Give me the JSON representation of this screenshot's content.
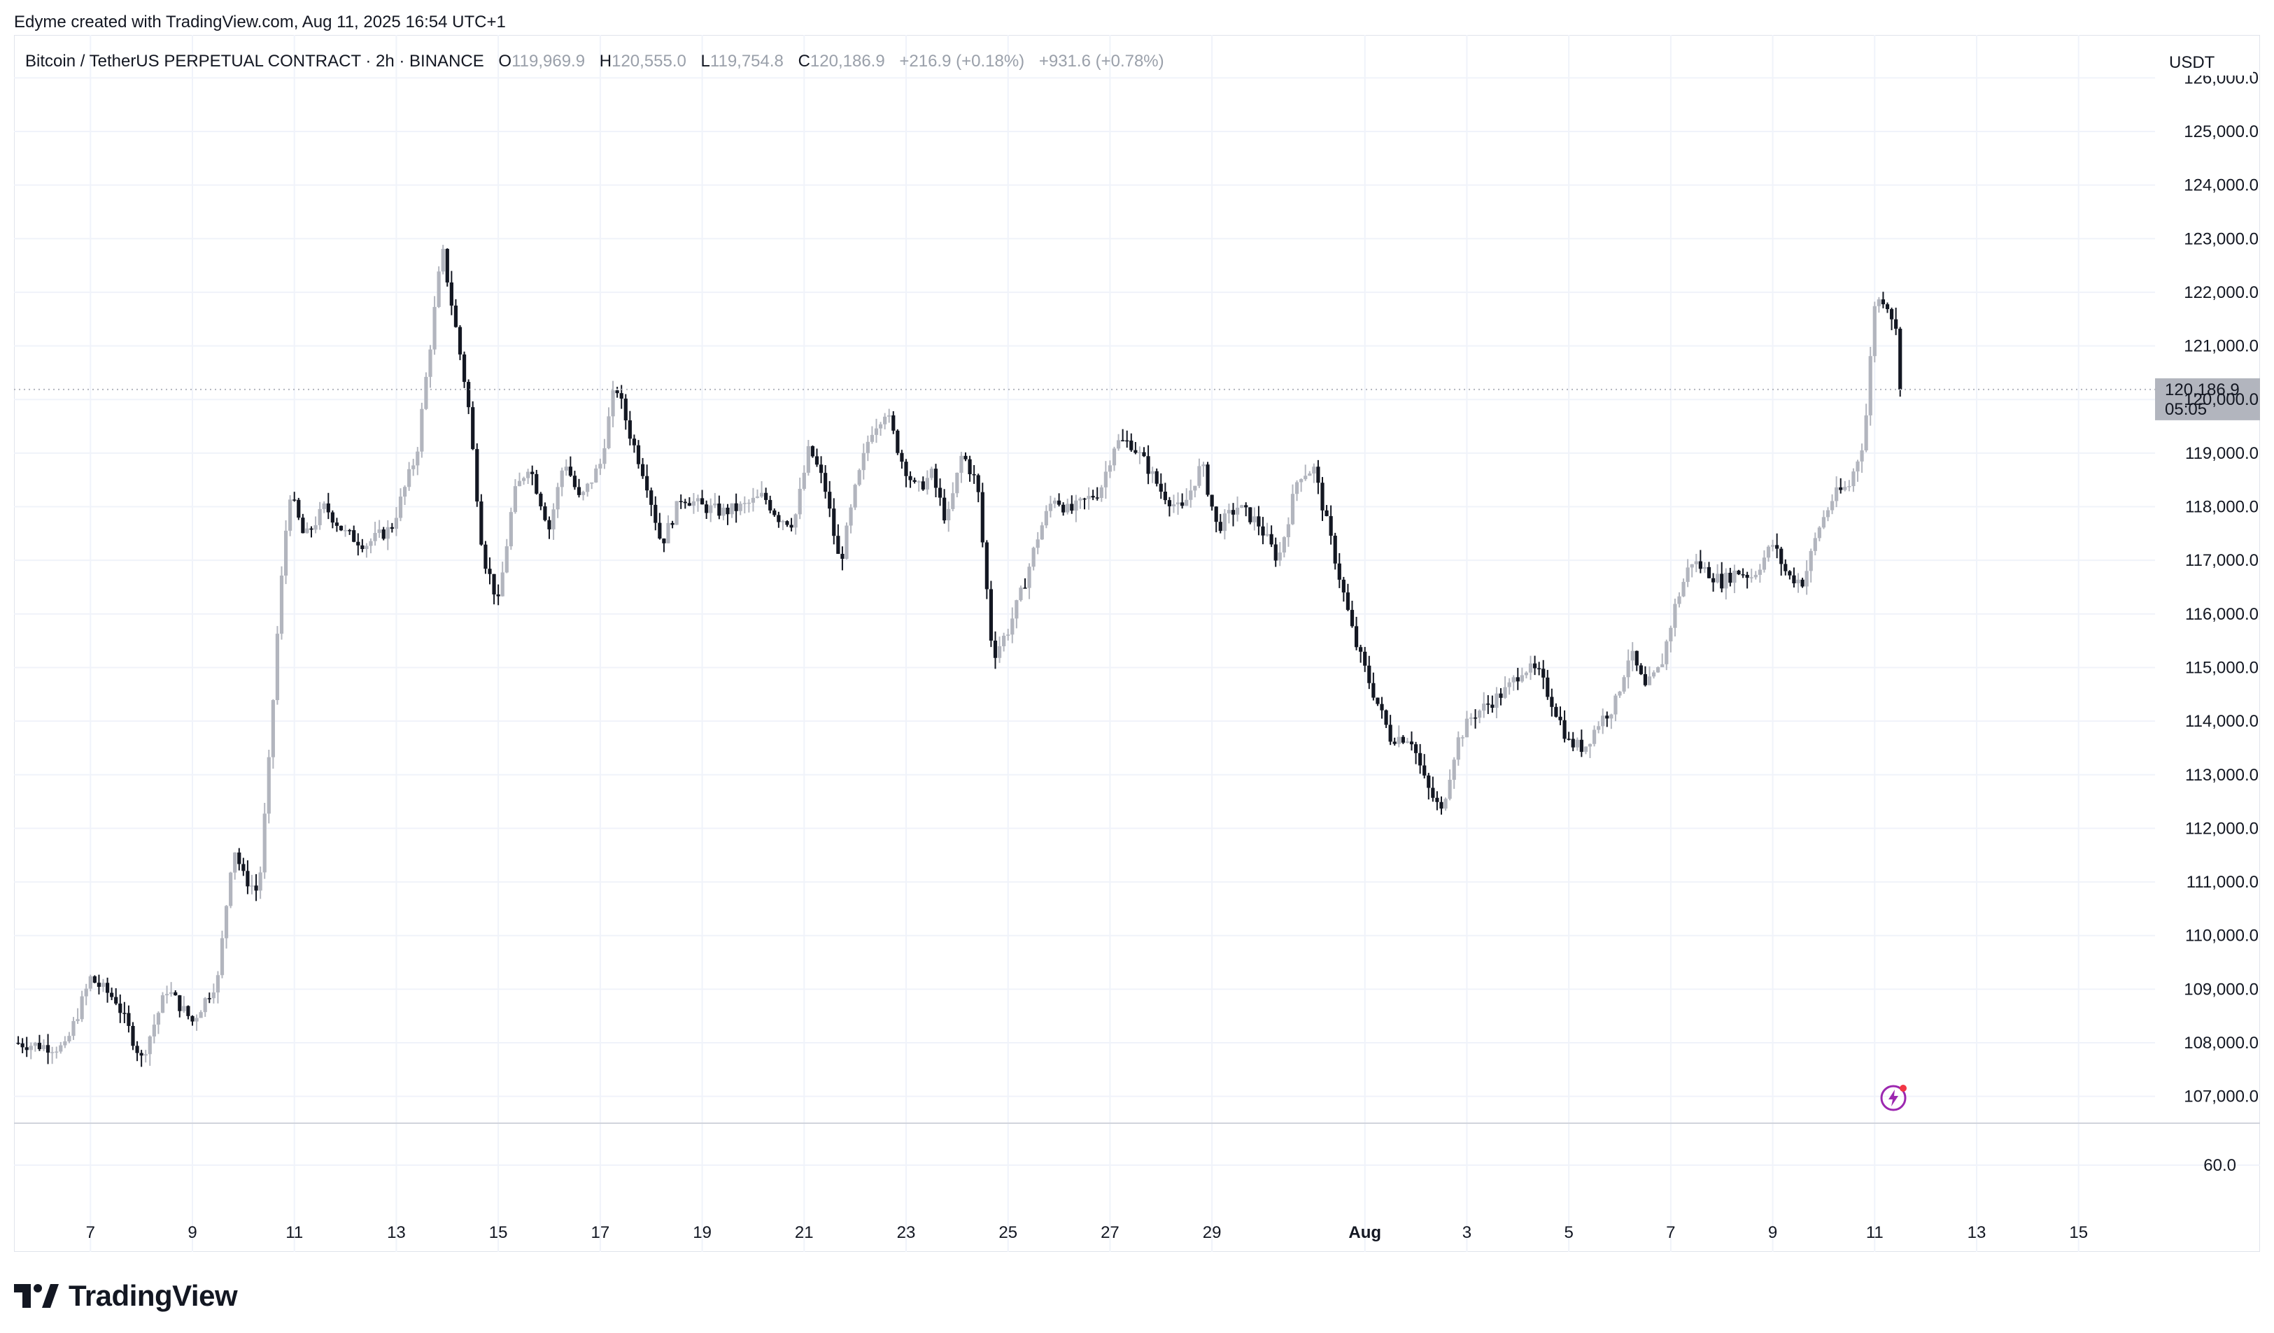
{
  "credit": "Edyme created with TradingView.com, Aug 11, 2025 16:54 UTC+1",
  "legend": {
    "symbol": "Bitcoin / TetherUS PERPETUAL CONTRACT · 2h · BINANCE",
    "o_label": "O",
    "o_value": "119,969.9",
    "h_label": "H",
    "h_value": "120,555.0",
    "l_label": "L",
    "l_value": "119,754.8",
    "c_label": "C",
    "c_value": "120,186.9",
    "change": "+216.9 (+0.18%)",
    "change2": "+931.6 (+0.78%)"
  },
  "currency": "USDT",
  "price_tag": {
    "price": "120,186.9",
    "countdown": "05:05"
  },
  "brand": "TradingView",
  "colors": {
    "up": "#b2b5be",
    "down": "#131722",
    "grid": "#f0f3fa",
    "tag_bg": "#b2b5be",
    "flash": "#9c27b0"
  },
  "icons": {
    "flash": "lightning-bolt-icon",
    "logo": "tradingview-logo-icon"
  },
  "chart_data": {
    "type": "candlestick",
    "interval": "2h",
    "y_ticks": [
      "126,000.0",
      "125,000.0",
      "124,000.0",
      "123,000.0",
      "122,000.0",
      "121,000.0",
      "120,000.0",
      "119,000.0",
      "118,000.0",
      "117,000.0",
      "116,000.0",
      "115,000.0",
      "114,000.0",
      "113,000.0",
      "112,000.0",
      "111,000.0",
      "110,000.0",
      "109,000.0",
      "108,000.0",
      "107,000.0"
    ],
    "y_tick_values": [
      126000,
      125000,
      124000,
      123000,
      122000,
      121000,
      120000,
      119000,
      118000,
      117000,
      116000,
      115000,
      114000,
      113000,
      112000,
      111000,
      110000,
      109000,
      108000,
      107000
    ],
    "ylim": [
      106500,
      126800
    ],
    "volume_tick": "60.0",
    "x_ticks": [
      "7",
      "9",
      "11",
      "13",
      "15",
      "17",
      "19",
      "21",
      "23",
      "25",
      "27",
      "29",
      "Aug",
      "3",
      "5",
      "7",
      "9",
      "11",
      "13",
      "15"
    ],
    "x_tick_days": [
      7,
      9,
      11,
      13,
      15,
      17,
      19,
      21,
      23,
      25,
      27,
      29,
      32,
      34,
      36,
      38,
      40,
      42,
      44,
      46
    ],
    "x_range_days": [
      5.5,
      47.5
    ],
    "last_price": 120186.9,
    "close_path": [
      [
        5.5,
        108000
      ],
      [
        6.5,
        107900
      ],
      [
        7.0,
        109200
      ],
      [
        7.5,
        108800
      ],
      [
        8.0,
        107700
      ],
      [
        8.5,
        109000
      ],
      [
        9.0,
        108400
      ],
      [
        9.5,
        109200
      ],
      [
        9.8,
        111700
      ],
      [
        10.0,
        111100
      ],
      [
        10.3,
        110800
      ],
      [
        10.5,
        113200
      ],
      [
        10.7,
        116100
      ],
      [
        10.9,
        118300
      ],
      [
        11.2,
        117400
      ],
      [
        11.6,
        118000
      ],
      [
        12.0,
        117500
      ],
      [
        12.4,
        117300
      ],
      [
        12.9,
        117600
      ],
      [
        13.4,
        119000
      ],
      [
        13.9,
        122800
      ],
      [
        14.1,
        121700
      ],
      [
        14.4,
        120000
      ],
      [
        14.7,
        117100
      ],
      [
        15.0,
        116200
      ],
      [
        15.3,
        118200
      ],
      [
        15.6,
        118800
      ],
      [
        16.0,
        117600
      ],
      [
        16.3,
        118900
      ],
      [
        16.6,
        118100
      ],
      [
        17.0,
        118800
      ],
      [
        17.3,
        120300
      ],
      [
        17.6,
        119300
      ],
      [
        17.9,
        118500
      ],
      [
        18.2,
        117300
      ],
      [
        18.6,
        118200
      ],
      [
        19.0,
        118000
      ],
      [
        19.4,
        117900
      ],
      [
        19.8,
        118000
      ],
      [
        20.2,
        118200
      ],
      [
        20.5,
        117800
      ],
      [
        20.8,
        117700
      ],
      [
        21.1,
        119100
      ],
      [
        21.4,
        118400
      ],
      [
        21.7,
        116900
      ],
      [
        22.0,
        118300
      ],
      [
        22.3,
        119400
      ],
      [
        22.6,
        119800
      ],
      [
        22.9,
        118900
      ],
      [
        23.2,
        118300
      ],
      [
        23.5,
        118600
      ],
      [
        23.8,
        117700
      ],
      [
        24.1,
        119000
      ],
      [
        24.4,
        118400
      ],
      [
        24.7,
        115200
      ],
      [
        25.0,
        115700
      ],
      [
        25.3,
        116500
      ],
      [
        25.6,
        117500
      ],
      [
        25.9,
        118200
      ],
      [
        26.2,
        117900
      ],
      [
        26.5,
        118100
      ],
      [
        26.8,
        118300
      ],
      [
        27.1,
        119200
      ],
      [
        27.4,
        119200
      ],
      [
        27.7,
        118800
      ],
      [
        28.0,
        118300
      ],
      [
        28.4,
        117900
      ],
      [
        28.8,
        118800
      ],
      [
        29.1,
        117600
      ],
      [
        29.5,
        118000
      ],
      [
        29.9,
        117700
      ],
      [
        30.3,
        117000
      ],
      [
        30.7,
        118600
      ],
      [
        31.0,
        118700
      ],
      [
        31.4,
        117100
      ],
      [
        31.8,
        115500
      ],
      [
        32.1,
        114700
      ],
      [
        32.5,
        113700
      ],
      [
        32.9,
        113700
      ],
      [
        33.2,
        112800
      ],
      [
        33.5,
        112300
      ],
      [
        33.8,
        113600
      ],
      [
        34.1,
        114100
      ],
      [
        34.4,
        114300
      ],
      [
        34.8,
        114600
      ],
      [
        35.1,
        115000
      ],
      [
        35.4,
        114900
      ],
      [
        35.7,
        114300
      ],
      [
        36.0,
        113600
      ],
      [
        36.3,
        113500
      ],
      [
        36.6,
        114000
      ],
      [
        36.9,
        114300
      ],
      [
        37.2,
        115300
      ],
      [
        37.5,
        114600
      ],
      [
        37.8,
        115000
      ],
      [
        38.1,
        116200
      ],
      [
        38.4,
        117000
      ],
      [
        38.7,
        116800
      ],
      [
        39.0,
        116600
      ],
      [
        39.3,
        116800
      ],
      [
        39.6,
        116700
      ],
      [
        40.0,
        117300
      ],
      [
        40.3,
        116700
      ],
      [
        40.6,
        116600
      ],
      [
        40.9,
        117600
      ],
      [
        41.2,
        118200
      ],
      [
        41.5,
        118400
      ],
      [
        41.8,
        119300
      ],
      [
        42.0,
        121800
      ],
      [
        42.2,
        121900
      ],
      [
        42.4,
        121400
      ],
      [
        42.55,
        120186.9
      ]
    ]
  }
}
